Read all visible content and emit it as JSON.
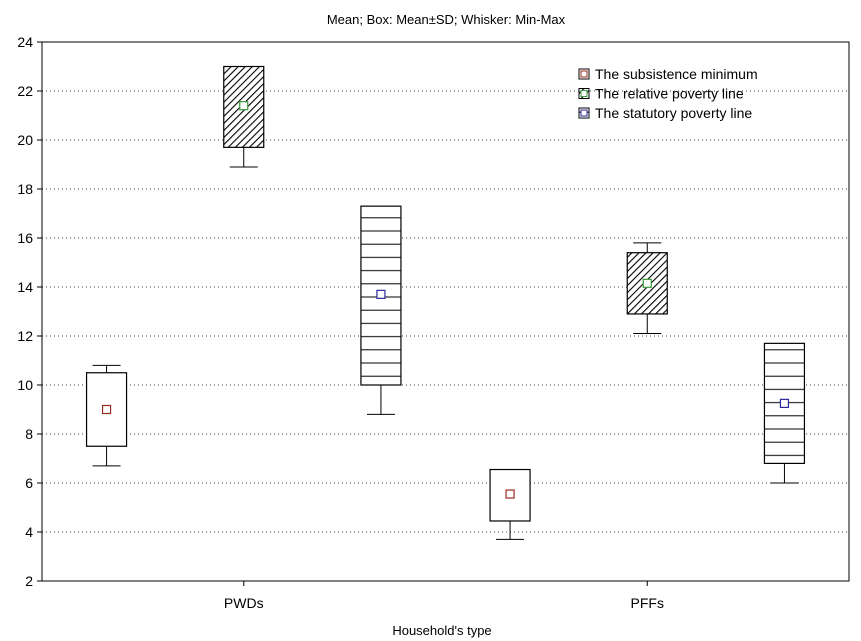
{
  "chart_data": {
    "type": "boxplot",
    "title": "Mean; Box: Mean±SD; Whisker: Min-Max",
    "xlabel": "Household's type",
    "ylabel": "",
    "ylim": [
      2,
      24
    ],
    "yticks": [
      2,
      4,
      6,
      8,
      10,
      12,
      14,
      16,
      18,
      20,
      22,
      24
    ],
    "categories": [
      "PWDs",
      "PFFs"
    ],
    "legend_position": "top-right",
    "series": [
      {
        "name": "The subsistence minimum",
        "marker_color": "#9b2a1e",
        "fill": "white",
        "groups": [
          {
            "category": "PWDs",
            "mean": 9.0,
            "box_low": 7.5,
            "box_high": 10.5,
            "min": 6.7,
            "max": 10.8
          },
          {
            "category": "PFFs",
            "mean": 5.55,
            "box_low": 4.45,
            "box_high": 6.55,
            "min": 3.7,
            "max": 3.7
          }
        ]
      },
      {
        "name": "The relative poverty line",
        "marker_color": "#3a9a3a",
        "fill": "diagonal",
        "groups": [
          {
            "category": "PWDs",
            "mean": 21.4,
            "box_low": 19.7,
            "box_high": 23.0,
            "min": 18.9,
            "max": 23.0
          },
          {
            "category": "PFFs",
            "mean": 14.15,
            "box_low": 12.9,
            "box_high": 15.4,
            "min": 12.1,
            "max": 15.8
          }
        ]
      },
      {
        "name": "The statutory poverty line",
        "marker_color": "#2a2a9b",
        "fill": "horizontal",
        "groups": [
          {
            "category": "PWDs",
            "mean": 13.7,
            "box_low": 10.0,
            "box_high": 17.3,
            "min": 8.8,
            "max": 17.3
          },
          {
            "category": "PFFs",
            "mean": 9.25,
            "box_low": 6.8,
            "box_high": 11.7,
            "min": 6.0,
            "max": 11.7
          }
        ]
      }
    ]
  }
}
